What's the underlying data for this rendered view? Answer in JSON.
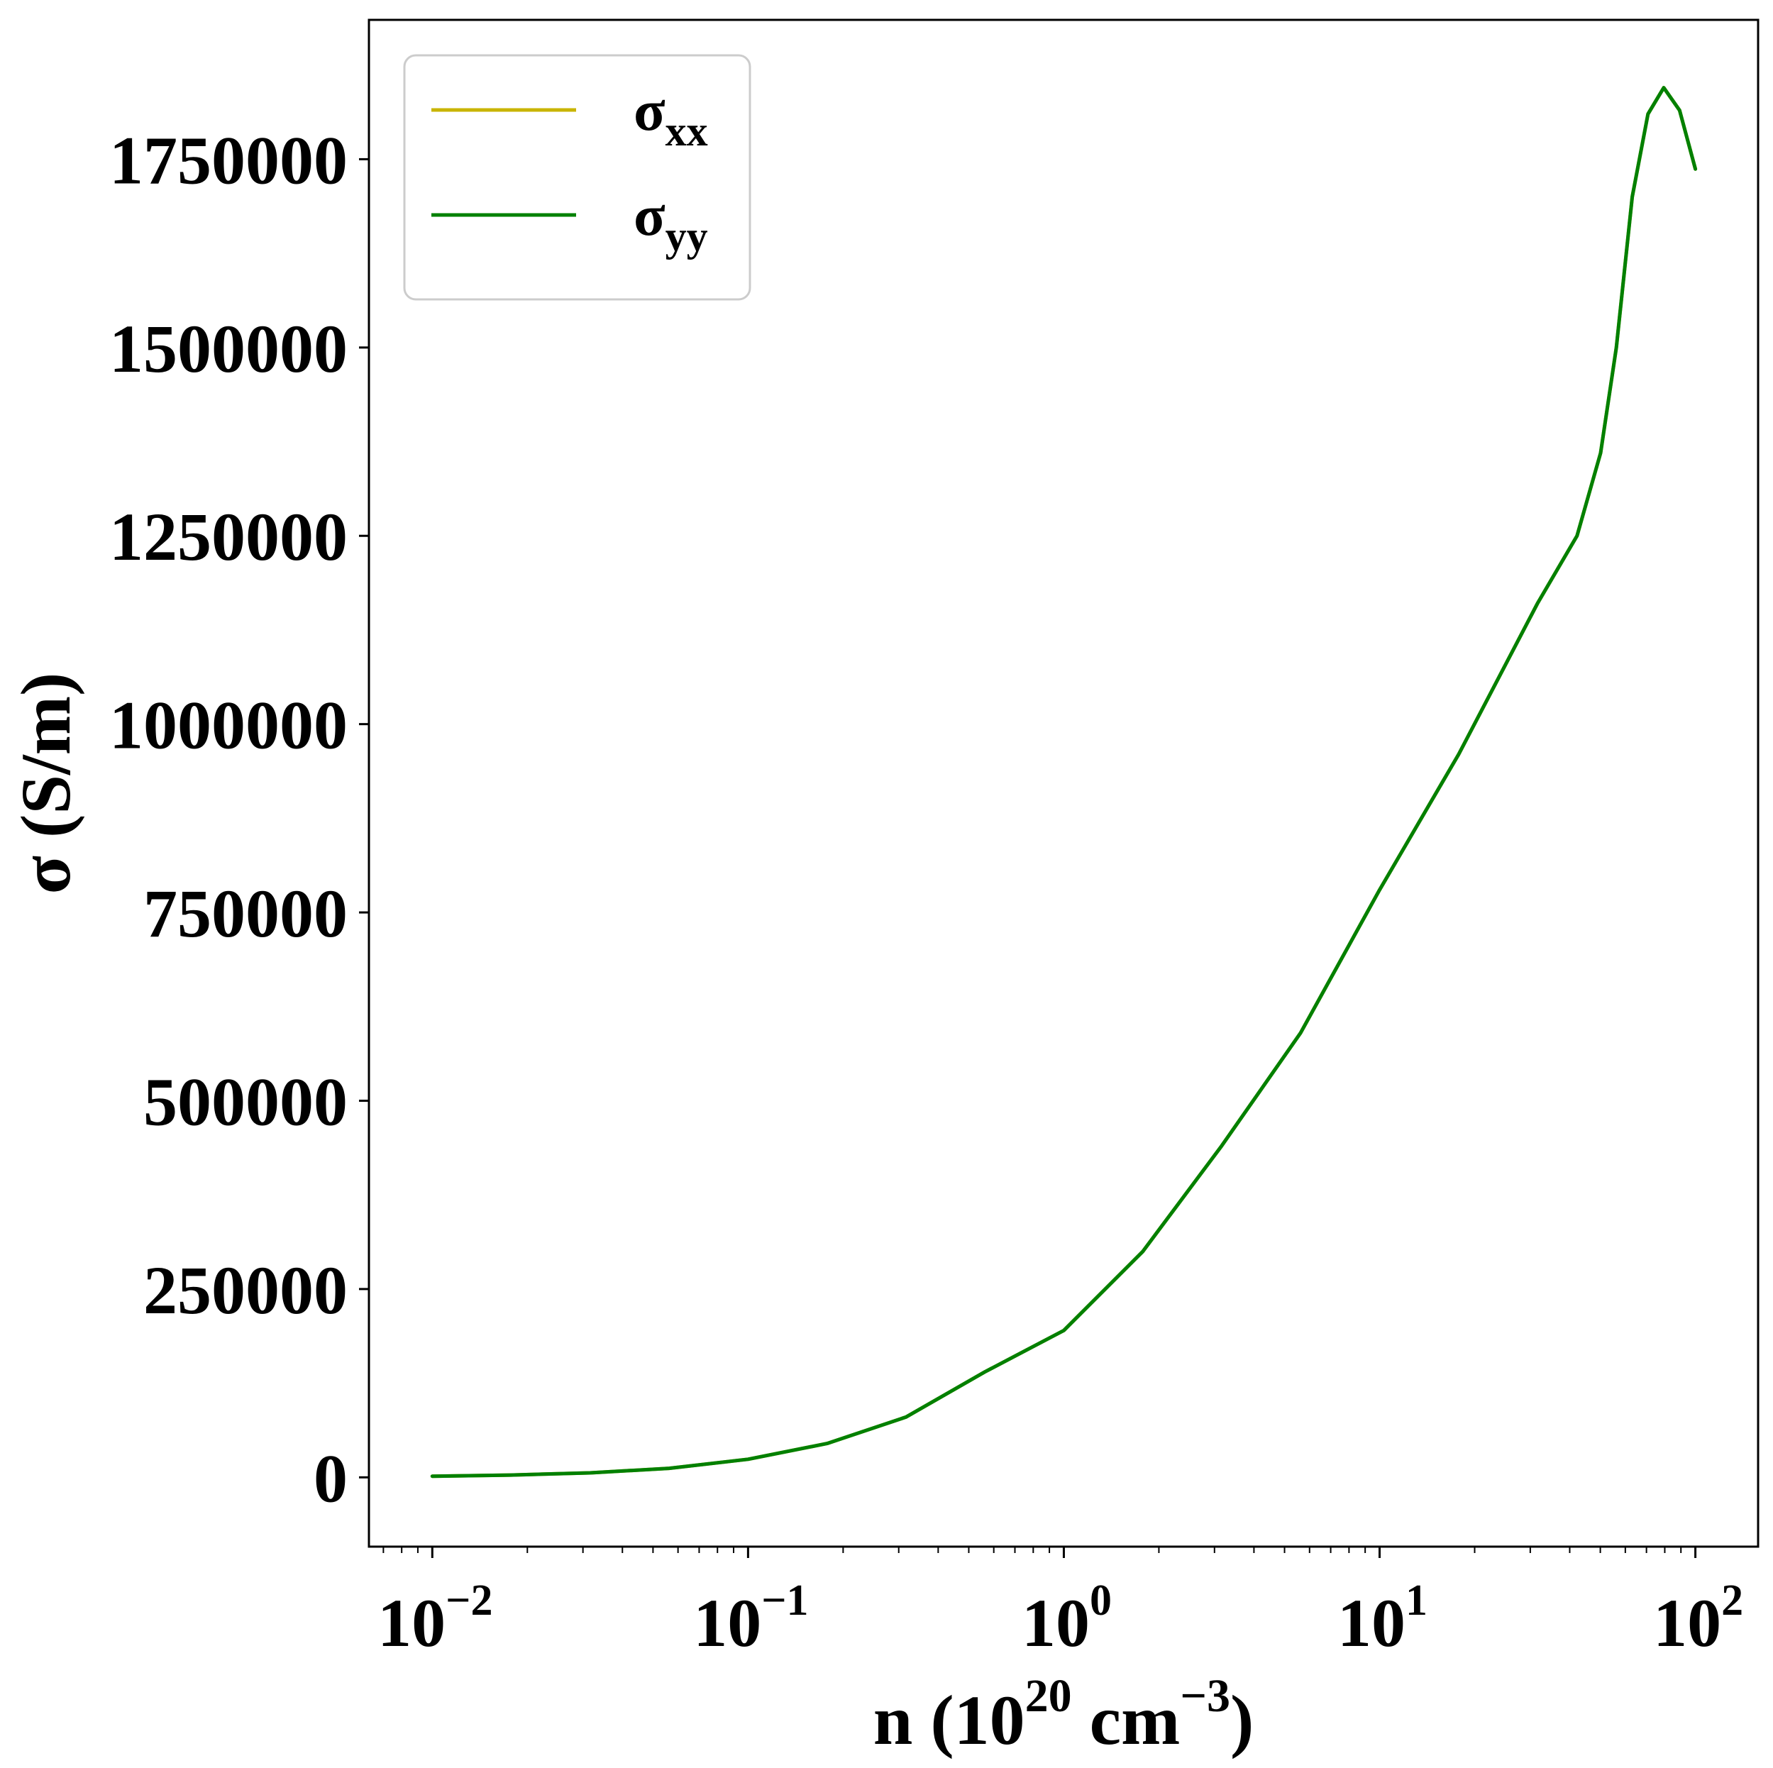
{
  "chart_data": {
    "type": "line",
    "xscale": "log",
    "xlim": [
      0.0063,
      158
    ],
    "ylim": [
      -92000,
      1935000
    ],
    "xlabel": {
      "text": "n (10",
      "sup1": "20",
      "mid": " cm",
      "sup2": "−3",
      "end": ")"
    },
    "ylabel": "σ (S/m)",
    "xticks": [
      {
        "value": 0.01,
        "base": "10",
        "exp": "−2"
      },
      {
        "value": 0.1,
        "base": "10",
        "exp": "−1"
      },
      {
        "value": 1,
        "base": "10",
        "exp": "0"
      },
      {
        "value": 10,
        "base": "10",
        "exp": "1"
      },
      {
        "value": 100,
        "base": "10",
        "exp": "2"
      }
    ],
    "yticks": [
      {
        "value": 0,
        "label": "0"
      },
      {
        "value": 250000,
        "label": "250000"
      },
      {
        "value": 500000,
        "label": "500000"
      },
      {
        "value": 750000,
        "label": "750000"
      },
      {
        "value": 1000000,
        "label": "1000000"
      },
      {
        "value": 1250000,
        "label": "1250000"
      },
      {
        "value": 1500000,
        "label": "1500000"
      },
      {
        "value": 1750000,
        "label": "1750000"
      }
    ],
    "grid": false,
    "legend_position": "top-left",
    "series": [
      {
        "name": "σ",
        "name_sub": "xx",
        "color": "#c8b400",
        "x": [
          0.01,
          0.0177,
          0.0316,
          0.0562,
          0.1,
          0.178,
          0.316,
          0.562,
          1.0,
          1.78,
          3.16,
          5.62,
          10.0,
          17.8,
          31.6,
          42.2,
          50.1,
          56.2,
          63.1,
          70.8,
          79.4,
          89.1,
          100
        ],
        "y": [
          1500,
          3000,
          6000,
          12000,
          24000,
          45000,
          80000,
          140000,
          195000,
          300000,
          440000,
          590000,
          780000,
          960000,
          1160000,
          1250000,
          1360000,
          1500000,
          1700000,
          1810000,
          1845000,
          1815000,
          1737000
        ]
      },
      {
        "name": "σ",
        "name_sub": "yy",
        "color": "#008000",
        "x": [
          0.01,
          0.0177,
          0.0316,
          0.0562,
          0.1,
          0.178,
          0.316,
          0.562,
          1.0,
          1.78,
          3.16,
          5.62,
          10.0,
          17.8,
          31.6,
          42.2,
          50.1,
          56.2,
          63.1,
          70.8,
          79.4,
          89.1,
          100
        ],
        "y": [
          1500,
          3000,
          6000,
          12000,
          24000,
          45000,
          80000,
          140000,
          195000,
          300000,
          440000,
          590000,
          780000,
          960000,
          1160000,
          1250000,
          1360000,
          1500000,
          1700000,
          1810000,
          1845000,
          1815000,
          1737000
        ]
      }
    ]
  }
}
